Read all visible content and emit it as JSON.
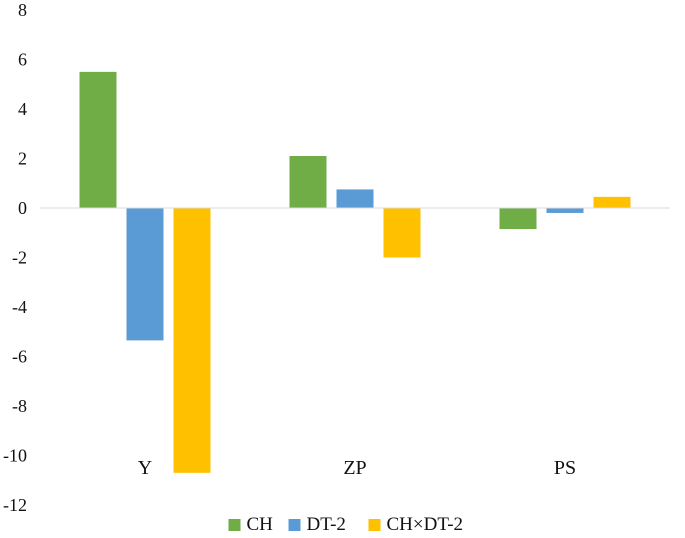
{
  "chart_data": {
    "type": "bar",
    "title": "",
    "xlabel": "",
    "ylabel": "",
    "categories": [
      "Y",
      "ZP",
      "PS"
    ],
    "series": [
      {
        "name": "CH",
        "color": "#70ad47",
        "values": [
          5.5,
          2.1,
          -0.85
        ]
      },
      {
        "name": "DT-2",
        "color": "#5b9bd5",
        "values": [
          -5.35,
          0.75,
          -0.2
        ]
      },
      {
        "name": "CH×DT-2",
        "color": "#ffc000",
        "values": [
          -10.7,
          -2.0,
          0.45
        ]
      }
    ],
    "ylim": [
      -12,
      8
    ],
    "yticks": [
      "8",
      "6",
      "4",
      "2",
      "0",
      "-2",
      "-4",
      "-6",
      "-8",
      "-10",
      "-12"
    ],
    "grid": false,
    "legend": "bottom"
  }
}
